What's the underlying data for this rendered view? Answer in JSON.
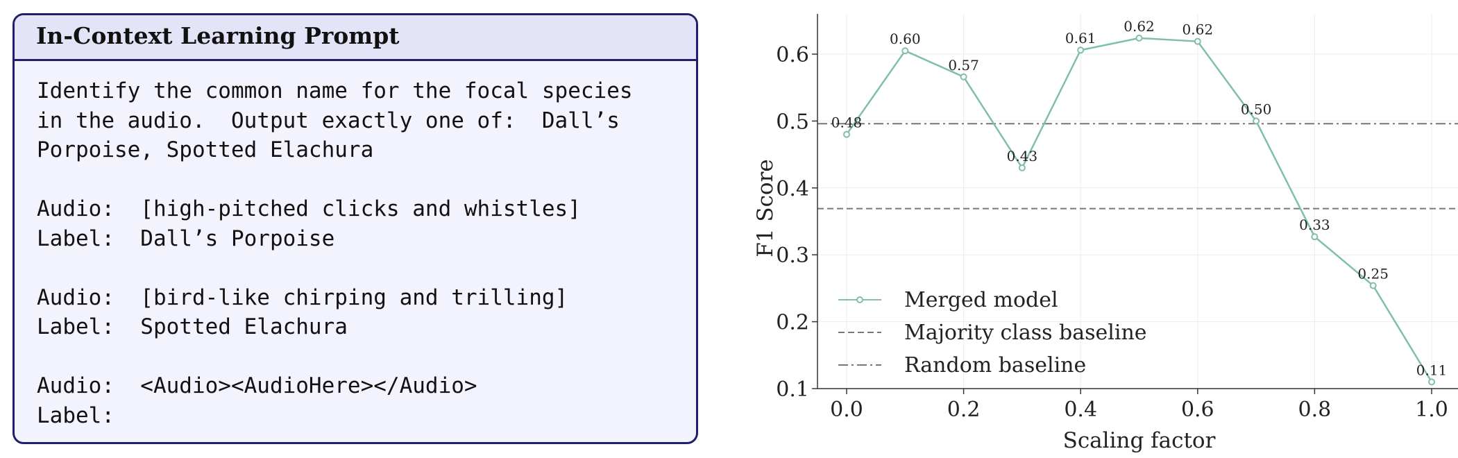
{
  "prompt": {
    "title": "In-Context Learning Prompt",
    "lines": [
      "Identify the common name for the focal species",
      "in the audio.  Output exactly one of:  Dall’s",
      "Porpoise, Spotted Elachura",
      "",
      "Audio:  [high-pitched clicks and whistles]",
      "Label:  Dall’s Porpoise",
      "",
      "Audio:  [bird-like chirping and trilling]",
      "Label:  Spotted Elachura",
      "",
      "Audio:  <Audio><AudioHere></Audio>",
      "Label:"
    ]
  },
  "chart_data": {
    "type": "line",
    "title": "",
    "xlabel": "Scaling factor",
    "ylabel": "F1 Score",
    "xlim": [
      0.0,
      1.0
    ],
    "ylim": [
      0.1,
      0.6
    ],
    "x_ticks": [
      "0.0",
      "0.2",
      "0.4",
      "0.6",
      "0.8",
      "1.0"
    ],
    "y_ticks": [
      "0.1",
      "0.2",
      "0.3",
      "0.4",
      "0.5",
      "0.6"
    ],
    "grid": true,
    "legend_position": "lower-left",
    "series": [
      {
        "name": "Merged model",
        "color": "#7fbfaa",
        "x": [
          0.0,
          0.1,
          0.2,
          0.3,
          0.4,
          0.5,
          0.6,
          0.7,
          0.8,
          0.9,
          1.0
        ],
        "values": [
          0.48,
          0.605,
          0.566,
          0.43,
          0.606,
          0.624,
          0.619,
          0.5,
          0.327,
          0.254,
          0.11
        ],
        "data_labels": [
          "0.48",
          "0.60",
          "0.57",
          "0.43",
          "0.61",
          "0.62",
          "0.62",
          "0.50",
          "0.33",
          "0.25",
          "0.11"
        ]
      }
    ],
    "baselines": [
      {
        "name": "Majority class baseline",
        "value": 0.369,
        "style": "dashed",
        "color": "#777777"
      },
      {
        "name": "Random baseline",
        "value": 0.496,
        "style": "dashdot",
        "color": "#777777"
      }
    ]
  }
}
